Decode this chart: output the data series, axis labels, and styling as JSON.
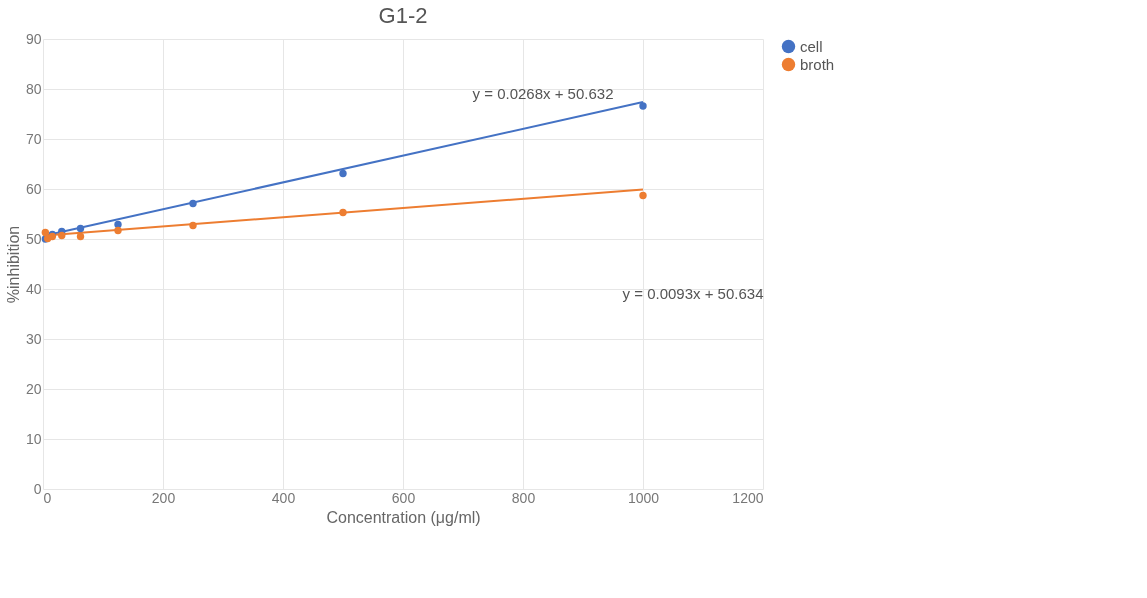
{
  "chart_data": {
    "type": "scatter",
    "title": "G1-2",
    "xlabel": "Concentration (μg/ml)",
    "ylabel": "%inhibition",
    "xlim": [
      0,
      1200
    ],
    "xticks": [
      0,
      200,
      400,
      600,
      800,
      {
        "value": 1000,
        "label": "1000"
      },
      {
        "value": 1200,
        "label": "1200"
      }
    ],
    "ylim": [
      0,
      90
    ],
    "yticks": [
      0,
      10,
      20,
      30,
      40,
      50,
      60,
      70,
      80,
      90
    ],
    "grid": true,
    "legend": "right",
    "marker": "circle",
    "series": [
      {
        "name": "cell",
        "color": "#4472c4",
        "x": [
          3.9,
          7.8,
          15.6,
          31.25,
          62.5,
          125,
          250,
          500,
          1000
        ],
        "values": [
          50,
          null,
          50.9,
          51.5,
          52.1,
          52.9,
          57.1,
          63.1,
          76.6
        ]
      },
      {
        "name": "broth",
        "color": "#ed7d31",
        "x": [
          3.9,
          7.8,
          15.6,
          31.25,
          62.5,
          125,
          250,
          500,
          1000
        ],
        "values": [
          51.3,
          50.1,
          50.5,
          50.7,
          50.5,
          51.7,
          52.7,
          55.3,
          58.7
        ]
      },
      {
        "type": "line",
        "marker": "none",
        "color": "#4472c4",
        "x": [
          3.9,
          1000
        ],
        "values": [
          50.7,
          77.4
        ]
      },
      {
        "type": "line",
        "marker": "none",
        "color": "#ed7d31",
        "x": [
          3.9,
          1000
        ],
        "values": [
          50.7,
          59.9
        ]
      }
    ],
    "annotations": [
      "y = 0.0268x + 50.632",
      "y = 0.0093x + 50.634"
    ]
  }
}
